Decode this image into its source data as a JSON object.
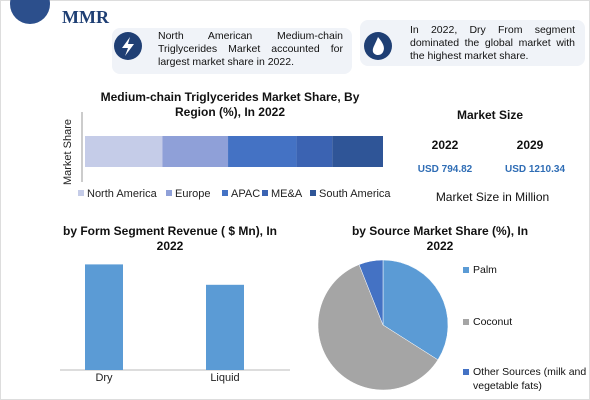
{
  "logo": "MMR",
  "info": [
    "North American Medium-chain Triglycerides Market accounted for largest market share in 2022.",
    "In 2022, Dry From segment dominated the global market with the highest market share."
  ],
  "market_size": {
    "title": "Market Size",
    "years": [
      "2022",
      "2029"
    ],
    "values": [
      "USD 794.82",
      "USD 1210.34"
    ],
    "note": "Market Size in Million"
  },
  "chart_data": [
    {
      "type": "stacked-bar",
      "title": "Medium-chain Triglycerides Market Share, By Region (%), In 2022",
      "y_label": "Market Share",
      "xlim": [
        0,
        100
      ],
      "series": [
        {
          "name": "North America",
          "color": "#c5cce8",
          "values": [
            26
          ]
        },
        {
          "name": "Europe",
          "color": "#8fa0d8",
          "values": [
            22
          ]
        },
        {
          "name": "APAC",
          "color": "#4472c4",
          "values": [
            23
          ]
        },
        {
          "name": "ME&A",
          "color": "#3b63b2",
          "values": [
            12
          ]
        },
        {
          "name": "South America",
          "color": "#2f5597",
          "values": [
            17
          ]
        }
      ]
    },
    {
      "type": "bar",
      "title": "by Form Segment Revenue ( $ Mn), In 2022",
      "categories": [
        "Dry",
        "Liquid"
      ],
      "values": [
        440,
        355
      ],
      "color": "#5b9bd5",
      "ylim": [
        0,
        500
      ]
    },
    {
      "type": "pie",
      "title": "by Source  Market Share (%), In 2022",
      "categories": [
        "Palm",
        "Coconut",
        "Other Sources (milk and vegetable fats)"
      ],
      "values": [
        34,
        60,
        6
      ],
      "colors": [
        "#5b9bd5",
        "#a5a5a5",
        "#4472c4"
      ]
    }
  ]
}
